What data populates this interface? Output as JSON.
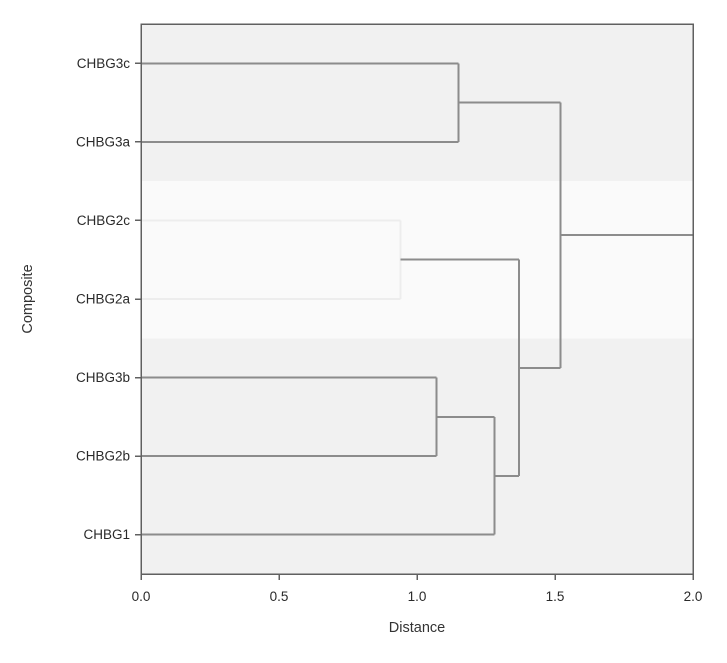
{
  "chart_data": {
    "type": "dendrogram",
    "orientation": "horizontal",
    "title": "",
    "xlabel": "Distance",
    "ylabel": "Composite",
    "xlim": [
      0.0,
      2.0
    ],
    "xticks": [
      0.0,
      0.5,
      1.0,
      1.5,
      2.0
    ],
    "xtick_labels": [
      "0.0",
      "0.5",
      "1.0",
      "1.5",
      "2.0"
    ],
    "grid": false,
    "leaves": [
      "CHBG3c",
      "CHBG3a",
      "CHBG2c",
      "CHBG2a",
      "CHBG3b",
      "CHBG2b",
      "CHBG1"
    ],
    "merges": [
      {
        "id": "A",
        "children": [
          "CHBG3c",
          "CHBG3a"
        ],
        "distance": 1.15,
        "style": "normal"
      },
      {
        "id": "B",
        "children": [
          "CHBG2c",
          "CHBG2a"
        ],
        "distance": 0.94,
        "style": "light"
      },
      {
        "id": "C",
        "children": [
          "CHBG3b",
          "CHBG2b"
        ],
        "distance": 1.07,
        "style": "normal"
      },
      {
        "id": "D",
        "children": [
          "C",
          "CHBG1"
        ],
        "distance": 1.28,
        "style": "normal"
      },
      {
        "id": "E",
        "children": [
          "B",
          "D"
        ],
        "distance": 1.37,
        "style": "normal"
      },
      {
        "id": "F",
        "children": [
          "A",
          "E"
        ],
        "distance": 1.52,
        "style": "normal"
      }
    ],
    "root_extends_to": 2.0,
    "bands": [
      {
        "from_leaf": 0,
        "to_leaf": 1,
        "color": "#f1f1f1"
      },
      {
        "from_leaf": 2,
        "to_leaf": 3,
        "color": "#fafafa"
      },
      {
        "from_leaf": 4,
        "to_leaf": 6,
        "color": "#f1f1f1"
      }
    ],
    "colors": {
      "line": "#8c8c8c",
      "light_line": "#ededed",
      "frame": "#606060",
      "tick": "#606060",
      "text": "#2a2a2a",
      "background": "#ffffff"
    }
  }
}
